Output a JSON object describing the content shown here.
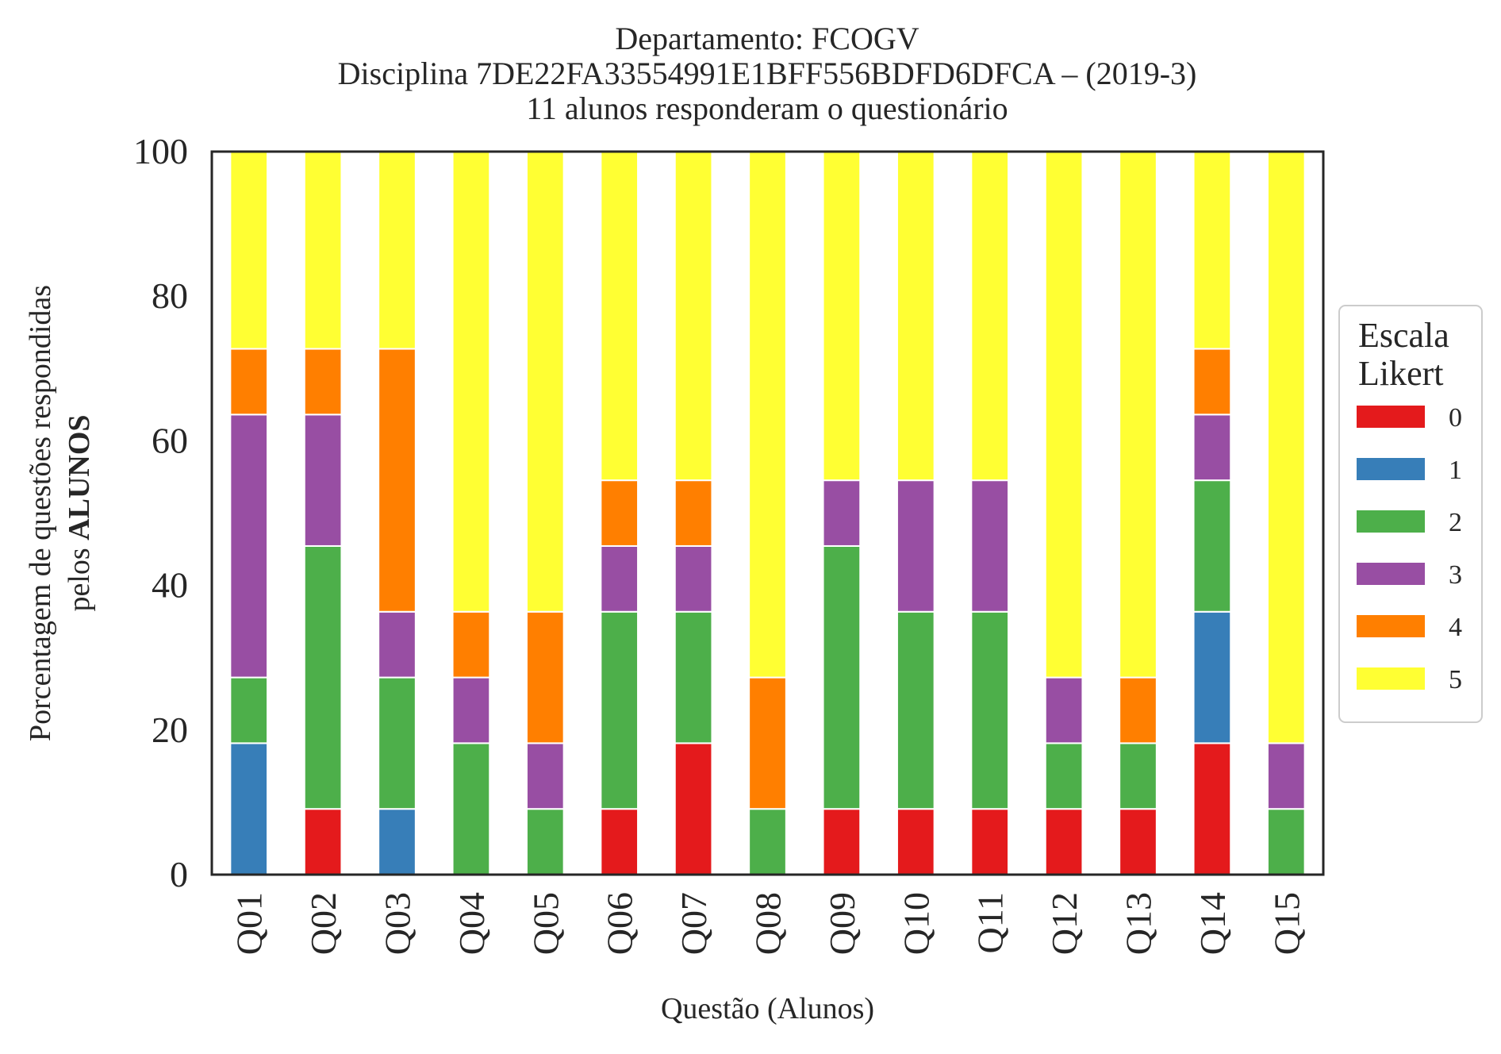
{
  "chart_data": {
    "type": "bar",
    "stacked": true,
    "title_lines": [
      "Departamento: FCOGV",
      "Disciplina 7DE22FA33554991E1BFF556BDFD6DFCA – (2019-3)",
      "11 alunos responderam o questionário"
    ],
    "xlabel": "Questão (Alunos)",
    "ylabel_line1": "Porcentagem de questões respondidas",
    "ylabel_line2_prefix": "pelos ",
    "ylabel_line2_bold": "ALUNOS",
    "ylim": [
      0,
      100
    ],
    "yticks": [
      "0",
      "20",
      "40",
      "60",
      "80",
      "100"
    ],
    "grid": false,
    "legend": {
      "title_lines": [
        "Escala",
        "Likert"
      ],
      "placement": "right"
    },
    "categories": [
      "Q01",
      "Q02",
      "Q03",
      "Q04",
      "Q05",
      "Q06",
      "Q07",
      "Q08",
      "Q09",
      "Q10",
      "Q11",
      "Q12",
      "Q13",
      "Q14",
      "Q15"
    ],
    "series": [
      {
        "name": "0",
        "color": "#e41a1c",
        "values": [
          0,
          9.09,
          0,
          0,
          0,
          9.09,
          18.18,
          0,
          9.09,
          9.09,
          9.09,
          9.09,
          9.09,
          18.18,
          0
        ]
      },
      {
        "name": "1",
        "color": "#377eb8",
        "values": [
          18.18,
          0,
          9.09,
          0,
          0,
          0,
          0,
          0,
          0,
          0,
          0,
          0,
          0,
          18.18,
          0
        ]
      },
      {
        "name": "2",
        "color": "#4daf4a",
        "values": [
          9.09,
          36.36,
          18.18,
          18.18,
          9.09,
          27.27,
          18.18,
          9.09,
          36.36,
          27.27,
          27.27,
          9.09,
          9.09,
          18.18,
          9.09
        ]
      },
      {
        "name": "3",
        "color": "#984ea3",
        "values": [
          36.36,
          18.18,
          9.09,
          9.09,
          9.09,
          9.09,
          9.09,
          0,
          9.09,
          18.18,
          18.18,
          9.09,
          0,
          9.09,
          9.09
        ]
      },
      {
        "name": "4",
        "color": "#ff7f00",
        "values": [
          9.09,
          9.09,
          36.36,
          9.09,
          18.18,
          9.09,
          9.09,
          18.18,
          0,
          0,
          0,
          0,
          9.09,
          9.09,
          0
        ]
      },
      {
        "name": "5",
        "color": "#ffff33",
        "values": [
          27.27,
          27.27,
          27.27,
          63.64,
          63.64,
          45.45,
          45.45,
          72.73,
          45.45,
          45.45,
          45.45,
          72.73,
          72.73,
          27.27,
          81.82
        ]
      }
    ]
  }
}
